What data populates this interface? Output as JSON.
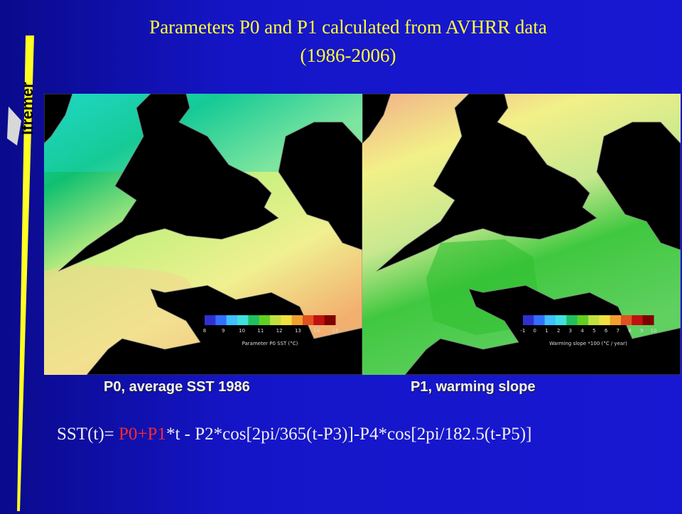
{
  "slide": {
    "title_line1": "Parameters P0 and P1 calculated from AVHRR data",
    "title_line2": "(1986-2006)",
    "logo_text": "Ifremer"
  },
  "maps": [
    {
      "caption": "P0, average SST 1986",
      "colorbar_title": "Parameter P0 SST (°C)",
      "colorbar_ticks": [
        "8",
        "9",
        "10",
        "11",
        "12",
        "13",
        "14",
        "15"
      ],
      "colors": {
        "land": "#000000",
        "north_sea": "#22d8d0",
        "channel": "#d8ef8a",
        "atlantic": "#f4d88a"
      }
    },
    {
      "caption": "P1, warming slope",
      "colorbar_title": "Warming slope *100 (°C / year)",
      "colorbar_ticks": [
        "-1",
        "0",
        "1",
        "2",
        "3",
        "4",
        "5",
        "6",
        "7",
        "8",
        "9",
        "10"
      ],
      "colors": {
        "land": "#000000",
        "north_sea": "#f0f07a",
        "channel": "#40d040",
        "atlantic": "#e6e0a0"
      }
    }
  ],
  "formula": {
    "prefix": "SST(t)= ",
    "p0": "P0",
    "plus": "+",
    "p1": "P1",
    "rest": "*t - P2*cos[2pi/365(t-P3)]-P4*cos[2pi/182.5(t-P5)]"
  }
}
